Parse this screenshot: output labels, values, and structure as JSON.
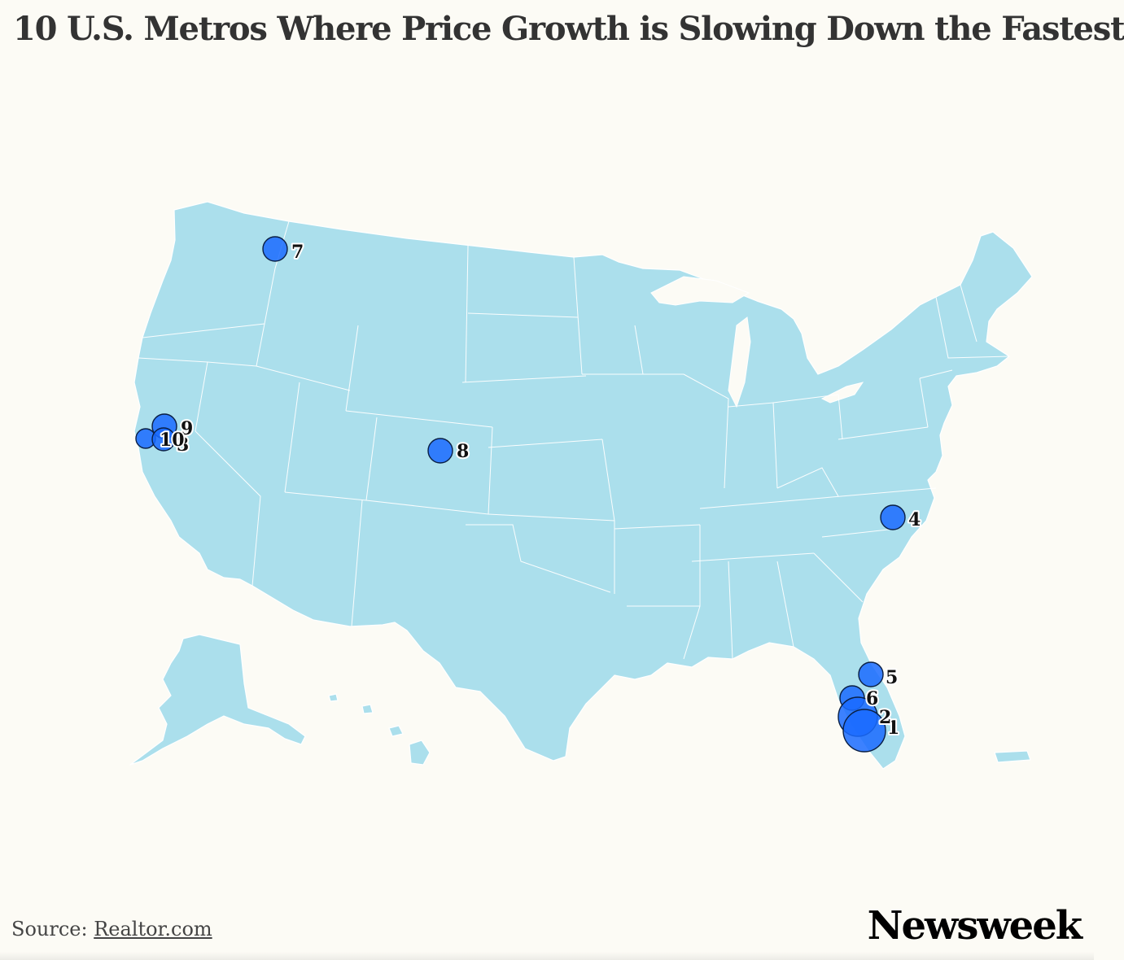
{
  "title": "10 U.S. Metros Where Price Growth is Slowing Down the Fastest",
  "source_label": "Source: ",
  "source_link": "Realtor.com",
  "brand": "Newsweek",
  "colors": {
    "background": "#fcfbf5",
    "land": "#abdfec",
    "bubble": "#1a6bff",
    "bubble_outline": "#0a1f44"
  },
  "markers": [
    {
      "rank": "1",
      "label": "1",
      "region": "South Florida"
    },
    {
      "rank": "2",
      "label": "2",
      "region": "South Florida"
    },
    {
      "rank": "3",
      "label": "3",
      "region": "Northern California"
    },
    {
      "rank": "4",
      "label": "4",
      "region": "North Carolina"
    },
    {
      "rank": "5",
      "label": "5",
      "region": "Central Florida"
    },
    {
      "rank": "6",
      "label": "6",
      "region": "Southwest Florida"
    },
    {
      "rank": "7",
      "label": "7",
      "region": "Eastern Washington"
    },
    {
      "rank": "8",
      "label": "8",
      "region": "Colorado"
    },
    {
      "rank": "9",
      "label": "9",
      "region": "Northern California"
    },
    {
      "rank": "10",
      "label": "10",
      "region": "Northern California"
    }
  ]
}
